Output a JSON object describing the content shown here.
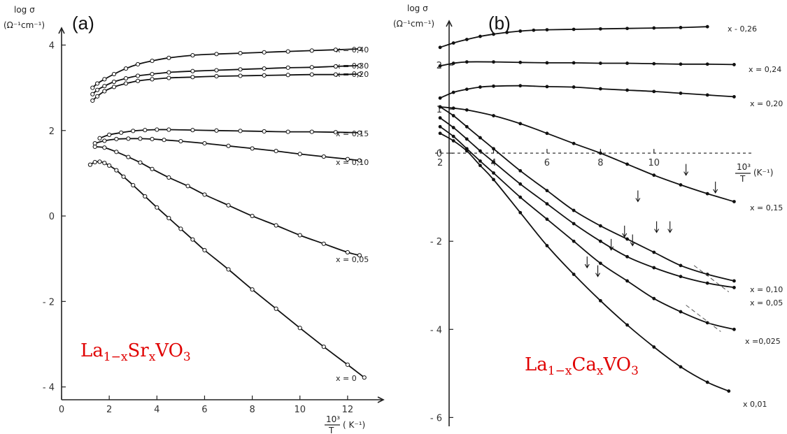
{
  "chart_data": [
    {
      "type": "line",
      "panel": "(a)",
      "compound": {
        "base1": "La",
        "sub1": "1−x",
        "base2": "Sr",
        "sub2": "x",
        "base3": "VO",
        "sub3": "3"
      },
      "ylabel_top": "log σ",
      "ylabel_unit": "(Ω⁻¹cm⁻¹)",
      "xlabel_frac": "10³",
      "xlabel_den": "T",
      "xlabel_unit": "( K⁻¹)",
      "xlim": [
        0,
        13.5
      ],
      "ylim": [
        -4.3,
        4.4
      ],
      "x_ticks": [
        "0",
        "2",
        "4",
        "6",
        "8",
        "10",
        "12"
      ],
      "y_ticks": [
        "4",
        "2",
        "0",
        "- 2",
        "- 4"
      ],
      "grid": false,
      "series": [
        {
          "name": "x = 0,40",
          "x": [
            1.3,
            1.5,
            1.8,
            2.2,
            2.7,
            3.2,
            3.8,
            4.5,
            5.5,
            6.5,
            7.5,
            8.5,
            9.5,
            10.5,
            11.5,
            12.5
          ],
          "y": [
            3.0,
            3.1,
            3.2,
            3.32,
            3.45,
            3.55,
            3.63,
            3.7,
            3.76,
            3.79,
            3.81,
            3.83,
            3.85,
            3.87,
            3.89,
            3.91
          ]
        },
        {
          "name": "x = 0,30",
          "x": [
            1.3,
            1.5,
            1.8,
            2.2,
            2.7,
            3.2,
            3.8,
            4.5,
            5.5,
            6.5,
            7.5,
            8.5,
            9.5,
            10.5,
            11.5,
            12.5
          ],
          "y": [
            2.85,
            2.95,
            3.04,
            3.14,
            3.22,
            3.28,
            3.32,
            3.36,
            3.39,
            3.41,
            3.43,
            3.45,
            3.47,
            3.48,
            3.5,
            3.52
          ]
        },
        {
          "name": "x = 0,20",
          "x": [
            1.3,
            1.5,
            1.8,
            2.2,
            2.7,
            3.2,
            3.8,
            4.5,
            5.5,
            6.5,
            7.5,
            8.5,
            9.5,
            10.5,
            11.5,
            12.5
          ],
          "y": [
            2.7,
            2.8,
            2.92,
            3.02,
            3.1,
            3.16,
            3.2,
            3.23,
            3.25,
            3.27,
            3.28,
            3.29,
            3.3,
            3.31,
            3.31,
            3.32
          ]
        },
        {
          "name": "x = 0,15",
          "x": [
            1.6,
            2.0,
            2.5,
            3.0,
            3.5,
            4.0,
            4.5,
            5.5,
            6.5,
            7.5,
            8.5,
            9.5,
            10.5,
            11.5,
            12.5
          ],
          "y": [
            1.82,
            1.9,
            1.95,
            1.99,
            2.01,
            2.02,
            2.02,
            2.01,
            2.0,
            1.99,
            1.98,
            1.97,
            1.97,
            1.96,
            1.95
          ]
        },
        {
          "name": "x = 0,10",
          "x": [
            1.4,
            1.8,
            2.3,
            2.8,
            3.3,
            3.8,
            4.3,
            5.0,
            6.0,
            7.0,
            8.0,
            9.0,
            10.0,
            11.0,
            12.0,
            12.5
          ],
          "y": [
            1.7,
            1.76,
            1.8,
            1.81,
            1.81,
            1.8,
            1.78,
            1.75,
            1.7,
            1.64,
            1.58,
            1.52,
            1.45,
            1.39,
            1.33,
            1.3
          ]
        },
        {
          "name": "x = 0,05",
          "x": [
            1.4,
            1.8,
            2.3,
            2.8,
            3.3,
            3.8,
            4.5,
            5.3,
            6.0,
            7.0,
            8.0,
            9.0,
            10.0,
            11.0,
            12.0,
            12.5
          ],
          "y": [
            1.62,
            1.6,
            1.5,
            1.38,
            1.25,
            1.1,
            0.9,
            0.7,
            0.5,
            0.25,
            0.0,
            -0.22,
            -0.45,
            -0.65,
            -0.85,
            -0.92
          ]
        },
        {
          "name": "x = 0",
          "x": [
            1.2,
            1.4,
            1.6,
            1.8,
            2.0,
            2.3,
            2.6,
            3.0,
            3.5,
            4.0,
            4.5,
            5.0,
            5.5,
            6.0,
            7.0,
            8.0,
            9.0,
            10.0,
            11.0,
            12.0,
            12.7
          ],
          "y": [
            1.2,
            1.26,
            1.27,
            1.24,
            1.18,
            1.07,
            0.92,
            0.72,
            0.46,
            0.2,
            -0.05,
            -0.3,
            -0.55,
            -0.8,
            -1.25,
            -1.72,
            -2.17,
            -2.62,
            -3.06,
            -3.48,
            -3.78
          ]
        }
      ]
    },
    {
      "type": "line",
      "panel": "(b)",
      "compound": {
        "base1": "La",
        "sub1": "1−x",
        "base2": "Ca",
        "sub2": "x",
        "base3": "VO",
        "sub3": "3"
      },
      "ylabel_top": "log σ",
      "ylabel_unit": "(Ω⁻¹cm⁻¹)",
      "xlabel_frac": "10³",
      "xlabel_den": "T",
      "xlabel_unit": "(K⁻¹)",
      "xlim": [
        1.5,
        13.8
      ],
      "ylim": [
        -6.2,
        3.0
      ],
      "x_ticks": [
        "2",
        "4",
        "6",
        "8",
        "10"
      ],
      "y_ticks": [
        "2",
        "1",
        "0",
        "- 2",
        "- 4",
        "- 6"
      ],
      "grid": false,
      "series": [
        {
          "name": "x - 0,26",
          "x": [
            2.0,
            2.5,
            3.0,
            3.5,
            4.0,
            4.5,
            5.0,
            5.5,
            6.0,
            7.0,
            8.0,
            9.0,
            10.0,
            11.0,
            12.0
          ],
          "y": [
            2.4,
            2.5,
            2.58,
            2.65,
            2.7,
            2.74,
            2.77,
            2.79,
            2.8,
            2.81,
            2.82,
            2.83,
            2.84,
            2.85,
            2.87
          ]
        },
        {
          "name": "x = 0,24",
          "x": [
            2.0,
            2.5,
            3.0,
            4.0,
            5.0,
            6.0,
            7.0,
            8.0,
            9.0,
            10.0,
            11.0,
            12.0,
            13.0
          ],
          "y": [
            1.98,
            2.04,
            2.07,
            2.07,
            2.06,
            2.05,
            2.05,
            2.04,
            2.04,
            2.03,
            2.02,
            2.02,
            2.01
          ]
        },
        {
          "name": "x = 0,20",
          "x": [
            2.0,
            2.5,
            3.0,
            3.5,
            4.0,
            5.0,
            6.0,
            7.0,
            8.0,
            9.0,
            10.0,
            11.0,
            12.0,
            13.0
          ],
          "y": [
            1.25,
            1.38,
            1.45,
            1.5,
            1.52,
            1.53,
            1.51,
            1.5,
            1.46,
            1.43,
            1.4,
            1.36,
            1.32,
            1.28
          ]
        },
        {
          "name": "x = 0,15",
          "x": [
            2.0,
            2.5,
            3.0,
            4.0,
            5.0,
            6.0,
            7.0,
            8.0,
            9.0,
            10.0,
            11.0,
            12.0,
            13.0
          ],
          "y": [
            1.05,
            1.02,
            0.98,
            0.85,
            0.67,
            0.45,
            0.22,
            0.0,
            -0.25,
            -0.5,
            -0.72,
            -0.92,
            -1.1
          ]
        },
        {
          "name": "x = 0,10",
          "x": [
            2.0,
            2.5,
            3.0,
            3.5,
            4.0,
            5.0,
            6.0,
            7.0,
            8.0,
            9.0,
            10.0,
            11.0,
            12.0,
            13.0
          ],
          "y": [
            1.05,
            0.85,
            0.6,
            0.35,
            0.1,
            -0.4,
            -0.85,
            -1.3,
            -1.65,
            -1.95,
            -2.25,
            -2.55,
            -2.75,
            -2.9
          ]
        },
        {
          "name": "x = 0,05",
          "x": [
            2.0,
            2.5,
            3.0,
            3.5,
            4.0,
            5.0,
            6.0,
            7.0,
            8.0,
            9.0,
            10.0,
            11.0,
            12.0,
            13.0
          ],
          "y": [
            0.8,
            0.58,
            0.32,
            0.05,
            -0.2,
            -0.7,
            -1.15,
            -1.6,
            -2.0,
            -2.35,
            -2.6,
            -2.8,
            -2.95,
            -3.05
          ]
        },
        {
          "name": "x =0,025",
          "x": [
            2.0,
            2.5,
            3.0,
            3.5,
            4.0,
            5.0,
            6.0,
            7.0,
            8.0,
            9.0,
            10.0,
            11.0,
            12.0,
            13.0
          ],
          "y": [
            0.6,
            0.38,
            0.1,
            -0.18,
            -0.45,
            -1.0,
            -1.5,
            -2.0,
            -2.5,
            -2.9,
            -3.3,
            -3.6,
            -3.85,
            -4.0
          ]
        },
        {
          "name": "x 0,01",
          "x": [
            2.0,
            2.5,
            3.0,
            3.5,
            4.0,
            5.0,
            6.0,
            7.0,
            8.0,
            9.0,
            10.0,
            11.0,
            12.0,
            12.8
          ],
          "y": [
            0.45,
            0.28,
            0.05,
            -0.28,
            -0.6,
            -1.35,
            -2.1,
            -2.75,
            -3.35,
            -3.9,
            -4.4,
            -4.85,
            -5.2,
            -5.4
          ]
        }
      ]
    }
  ]
}
